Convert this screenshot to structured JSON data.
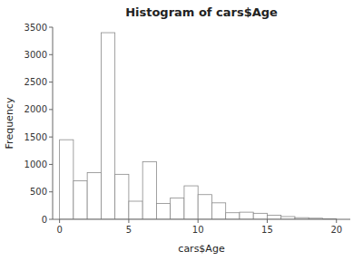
{
  "chart_data": {
    "type": "histogram",
    "title": "Histogram of cars$Age",
    "x_label": "cars$Age",
    "y_label": "Frequency",
    "bins": [
      0,
      1,
      2,
      3,
      4,
      5,
      6,
      7,
      8,
      9,
      10,
      11,
      12,
      13,
      14,
      15,
      16,
      17,
      18,
      19,
      20
    ],
    "values": [
      1450,
      700,
      850,
      3400,
      820,
      330,
      1050,
      290,
      390,
      610,
      450,
      300,
      120,
      130,
      110,
      75,
      50,
      30,
      20,
      10
    ],
    "color": "#ffffff",
    "xlim": [
      -0.5,
      21
    ],
    "ylim": [
      0,
      3500
    ],
    "xticks": [
      0,
      5,
      10,
      15,
      20
    ],
    "yticks": [
      0,
      500,
      1000,
      1500,
      2000,
      2500,
      3000,
      3500
    ],
    "grid": false
  }
}
